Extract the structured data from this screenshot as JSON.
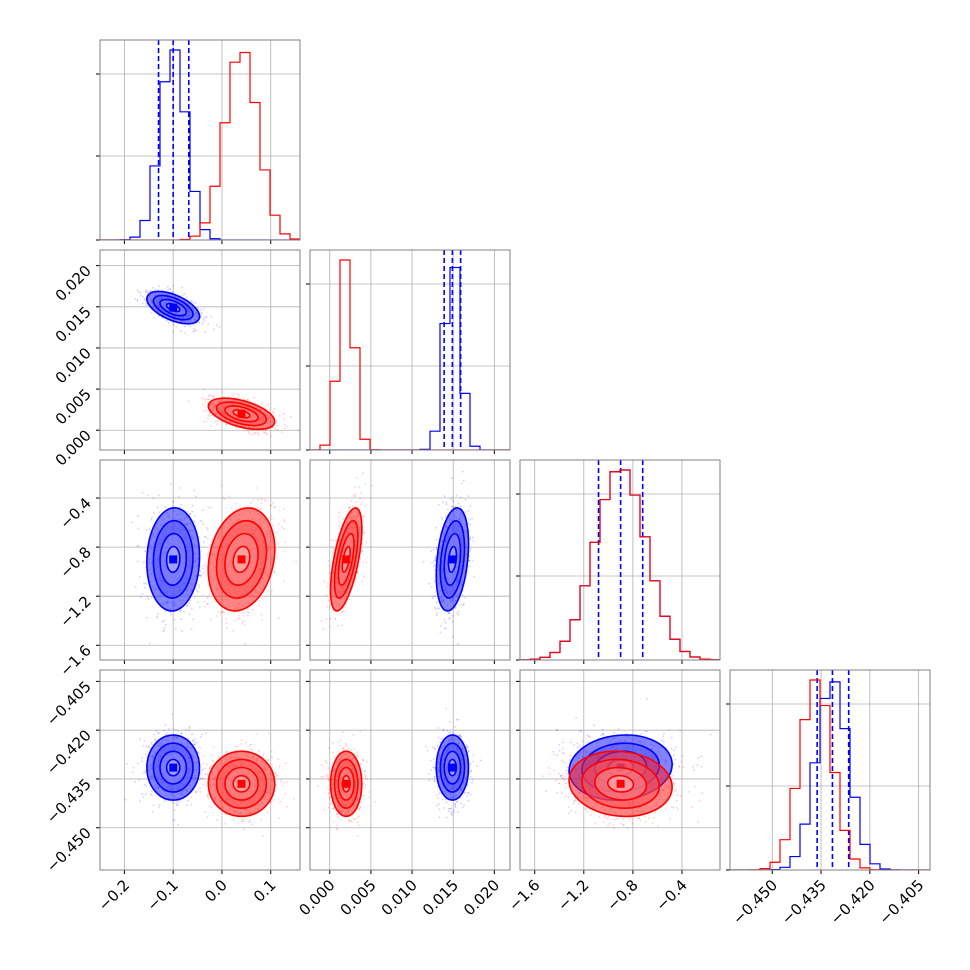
{
  "chart_data": {
    "type": "corner",
    "title": "",
    "parameters": [
      {
        "range": [
          -0.25,
          0.16
        ],
        "ticks": [
          -0.2,
          -0.1,
          0.0,
          0.1
        ],
        "tick_labels": [
          "−0.2",
          "−0.1",
          "0.0",
          "0.1"
        ]
      },
      {
        "range": [
          -0.0024,
          0.0219
        ],
        "ticks": [
          0.0,
          0.005,
          0.01,
          0.015,
          0.02
        ],
        "tick_labels": [
          "0.000",
          "0.005",
          "0.010",
          "0.015",
          "0.020"
        ]
      },
      {
        "range": [
          -1.72,
          -0.09
        ],
        "ticks": [
          -1.6,
          -1.2,
          -0.8,
          -0.4
        ],
        "tick_labels": [
          "−1.6",
          "−1.2",
          "−0.8",
          "−0.4"
        ]
      },
      {
        "range": [
          -0.463,
          -0.4015
        ],
        "ticks": [
          -0.45,
          -0.435,
          -0.42,
          -0.405
        ],
        "tick_labels": [
          "−0.450",
          "−0.435",
          "−0.420",
          "−0.405"
        ]
      }
    ],
    "series": [
      {
        "color": "#0000ff",
        "quantiles_shown": true,
        "mean": [
          -0.1,
          0.0149,
          -0.9,
          -0.4315
        ],
        "sigma": [
          0.027,
          0.00098,
          0.21,
          0.005
        ],
        "quantile_lines": [
          [
            -0.13,
            -0.1,
            -0.068
          ],
          [
            0.0139,
            0.0149,
            0.0159
          ],
          [
            -1.08,
            -0.9,
            -0.72
          ],
          [
            -0.4362,
            -0.4315,
            -0.4265
          ]
        ],
        "correlation": [
          [
            1,
            -0.55,
            0.05,
            0.0
          ],
          [
            -0.55,
            1,
            0.3,
            0.0
          ],
          [
            0.05,
            0.3,
            1,
            0.1
          ],
          [
            0.0,
            0.0,
            0.1,
            1
          ]
        ]
      },
      {
        "color": "#ff0000",
        "quantiles_shown": false,
        "mean": [
          0.04,
          0.002,
          -0.9,
          -0.4365
        ],
        "sigma": [
          0.034,
          0.00095,
          0.21,
          0.005
        ],
        "correlation": [
          [
            1,
            -0.5,
            0.2,
            0.0
          ],
          [
            -0.5,
            1,
            0.6,
            0.0
          ],
          [
            0.2,
            0.6,
            1,
            -0.1
          ],
          [
            0.0,
            0.0,
            -0.1,
            1
          ]
        ]
      }
    ],
    "grid": true,
    "legend": "none"
  }
}
